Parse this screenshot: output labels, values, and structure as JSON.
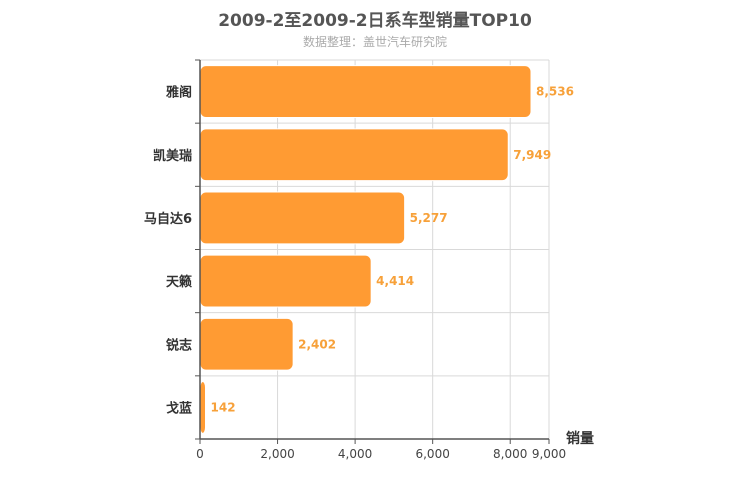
{
  "chart_data": {
    "type": "bar",
    "orientation": "horizontal",
    "title": "2009-2至2009-2日系车型销量TOP10",
    "subtitle": "数据整理：盖世汽车研究院",
    "categories": [
      "雅阁",
      "凯美瑞",
      "马自达6",
      "天籁",
      "锐志",
      "戈蓝"
    ],
    "values": [
      8536,
      7949,
      5277,
      4414,
      2402,
      142
    ],
    "value_labels": [
      "8,536",
      "7,949",
      "5,277",
      "4,414",
      "2,402",
      "142"
    ],
    "xlabel": "销量",
    "ylabel": "",
    "xlim": [
      0,
      9000
    ],
    "ticks": [
      0,
      2000,
      4000,
      6000,
      8000,
      9000
    ],
    "tick_labels": [
      "0",
      "2,000",
      "4,000",
      "6,000",
      "8,000",
      "9,000"
    ],
    "grid": true,
    "colors": {
      "bar": "#FF9B33",
      "bar_border": "#ffffff",
      "label": "#F7A13A",
      "grid": "#d9d9d9",
      "axis": "#555555"
    }
  }
}
